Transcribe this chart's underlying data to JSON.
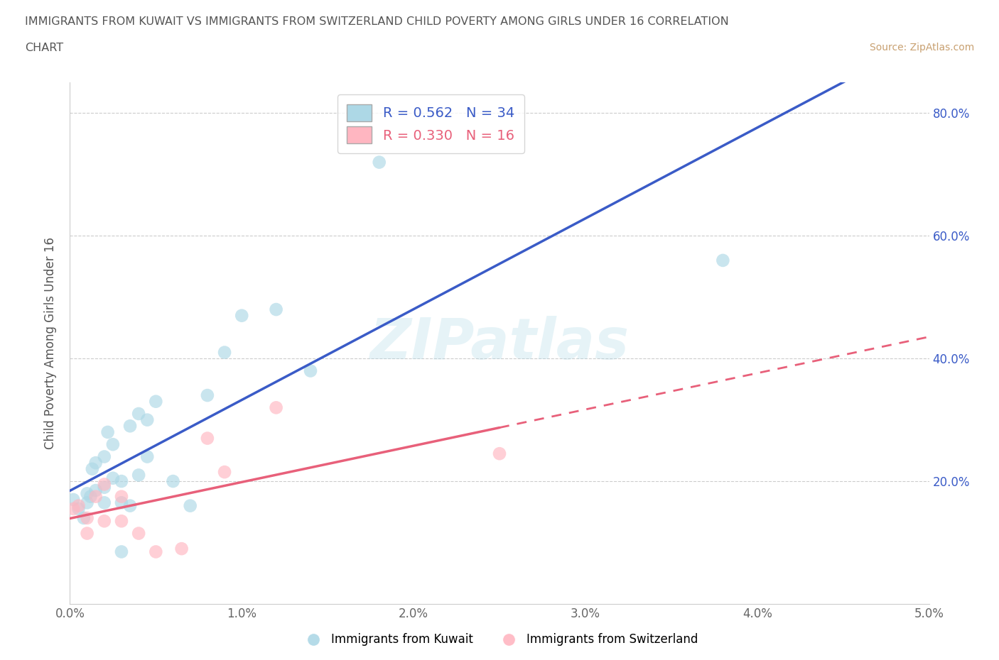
{
  "title_line1": "IMMIGRANTS FROM KUWAIT VS IMMIGRANTS FROM SWITZERLAND CHILD POVERTY AMONG GIRLS UNDER 16 CORRELATION",
  "title_line2": "CHART",
  "source_text": "Source: ZipAtlas.com",
  "ylabel": "Child Poverty Among Girls Under 16",
  "xlim": [
    0.0,
    0.05
  ],
  "ylim": [
    0.0,
    0.85
  ],
  "xticks": [
    0.0,
    0.01,
    0.02,
    0.03,
    0.04,
    0.05
  ],
  "xtick_labels": [
    "0.0%",
    "1.0%",
    "2.0%",
    "3.0%",
    "4.0%",
    "5.0%"
  ],
  "ytick_labels": [
    "20.0%",
    "40.0%",
    "60.0%",
    "80.0%"
  ],
  "ytick_values": [
    0.2,
    0.4,
    0.6,
    0.8
  ],
  "kuwait_color": "#add8e6",
  "switzerland_color": "#ffb6c1",
  "kuwait_line_color": "#3a5bc7",
  "switzerland_line_color": "#e8607a",
  "kuwait_R": "0.562",
  "kuwait_N": "34",
  "switzerland_R": "0.330",
  "switzerland_N": "16",
  "watermark_text": "ZIPatlas",
  "background_color": "#ffffff",
  "grid_color": "#cccccc",
  "title_color": "#555555",
  "kuwait_x": [
    0.0002,
    0.0005,
    0.0008,
    0.001,
    0.001,
    0.0012,
    0.0013,
    0.0015,
    0.0015,
    0.002,
    0.002,
    0.002,
    0.0022,
    0.0025,
    0.0025,
    0.003,
    0.003,
    0.003,
    0.0035,
    0.0035,
    0.004,
    0.004,
    0.0045,
    0.0045,
    0.005,
    0.006,
    0.007,
    0.008,
    0.009,
    0.01,
    0.012,
    0.014,
    0.018,
    0.038
  ],
  "kuwait_y": [
    0.17,
    0.155,
    0.14,
    0.165,
    0.18,
    0.175,
    0.22,
    0.185,
    0.23,
    0.165,
    0.19,
    0.24,
    0.28,
    0.205,
    0.26,
    0.165,
    0.085,
    0.2,
    0.16,
    0.29,
    0.31,
    0.21,
    0.24,
    0.3,
    0.33,
    0.2,
    0.16,
    0.34,
    0.41,
    0.47,
    0.48,
    0.38,
    0.72,
    0.56
  ],
  "switzerland_x": [
    0.0002,
    0.0005,
    0.001,
    0.001,
    0.0015,
    0.002,
    0.002,
    0.003,
    0.003,
    0.004,
    0.005,
    0.0065,
    0.008,
    0.009,
    0.012,
    0.025
  ],
  "switzerland_y": [
    0.155,
    0.16,
    0.115,
    0.14,
    0.175,
    0.135,
    0.195,
    0.135,
    0.175,
    0.115,
    0.085,
    0.09,
    0.27,
    0.215,
    0.32,
    0.245
  ],
  "dot_size": 180,
  "dot_alpha": 0.65
}
